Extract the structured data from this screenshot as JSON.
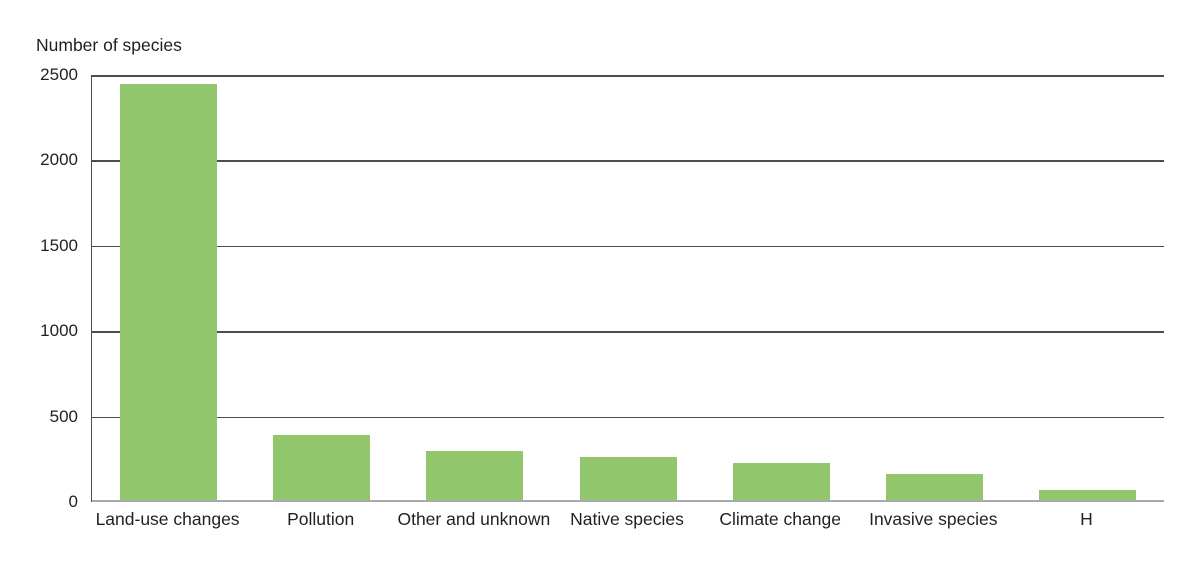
{
  "chart_data": {
    "type": "bar",
    "title": "Number of species",
    "categories": [
      "Land-use changes",
      "Pollution",
      "Other and unknown",
      "Native species",
      "Climate change",
      "Invasive species",
      "H"
    ],
    "values": [
      2440,
      385,
      295,
      260,
      220,
      160,
      65
    ],
    "xlabel": "",
    "ylabel": "",
    "ylim": [
      0,
      2500
    ],
    "yticks": [
      0,
      500,
      1000,
      1500,
      2000,
      2500
    ],
    "grid": true,
    "legend": "none",
    "colors": {
      "bar": "#92C66D",
      "gridline": "#4D4D4D",
      "axis": "#4D4D4D",
      "baseline": "#A7A9AC",
      "text": "#231F20",
      "background": "#FFFFFF"
    }
  }
}
